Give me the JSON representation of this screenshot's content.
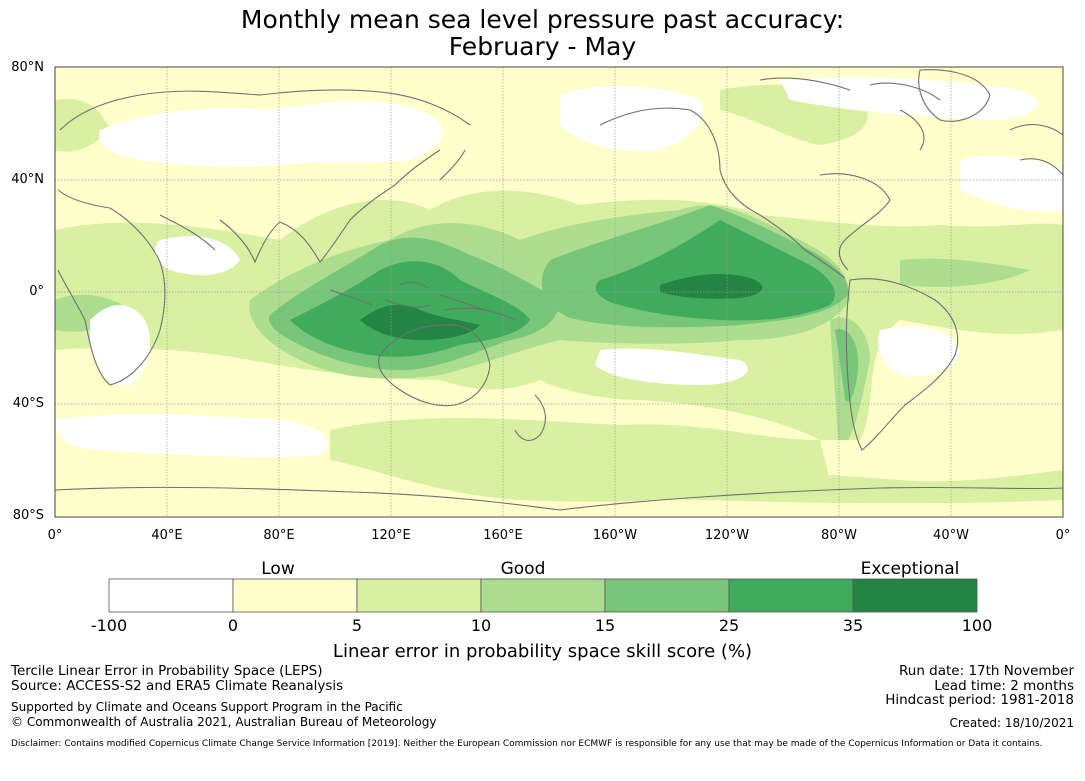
{
  "title": {
    "line1": "Monthly mean sea level pressure past accuracy:",
    "line2": "February - May"
  },
  "map": {
    "lat_labels": [
      "80°N",
      "40°N",
      "0°",
      "40°S",
      "80°S"
    ],
    "lon_labels": [
      "0°",
      "40°E",
      "80°E",
      "120°E",
      "160°E",
      "160°W",
      "120°W",
      "80°W",
      "40°W",
      "0°"
    ],
    "colors": {
      "c0": "#ffffff",
      "c1": "#ffffcc",
      "c2": "#d9f0a3",
      "c3": "#addd8e",
      "c4": "#78c679",
      "c5": "#41ab5d",
      "c6": "#238443",
      "coast": "#707070",
      "grid": "#999999"
    }
  },
  "colorbar": {
    "category_labels": [
      "Low",
      "Good",
      "Exceptional"
    ],
    "ticks": [
      "-100",
      "0",
      "5",
      "10",
      "15",
      "25",
      "35",
      "100"
    ],
    "label": "Linear error in probability space skill score (%)",
    "colors": [
      "#ffffff",
      "#ffffcc",
      "#d9f0a3",
      "#addd8e",
      "#78c679",
      "#41ab5d",
      "#238443"
    ]
  },
  "footer": {
    "method": "Tercile Linear Error in Probability Space (LEPS)",
    "source": "Source: ACCESS-S2 and ERA5 Climate Reanalysis",
    "support": "Supported by Climate and Oceans Support Program in the Pacific",
    "copyright": "© Commonwealth of Australia 2021, Australian Bureau of Meteorology",
    "run_date": "Run date: 17th November",
    "lead_time": "Lead time: 2 months",
    "hindcast": "Hindcast period: 1981-2018",
    "created": "Created: 18/10/2021",
    "disclaimer": "Disclaimer: Contains modified Copernicus Climate Change Service Information [2019]. Neither the European Commission nor ECMWF is responsible for any use that may be made of the Copernicus Information or Data it contains."
  }
}
